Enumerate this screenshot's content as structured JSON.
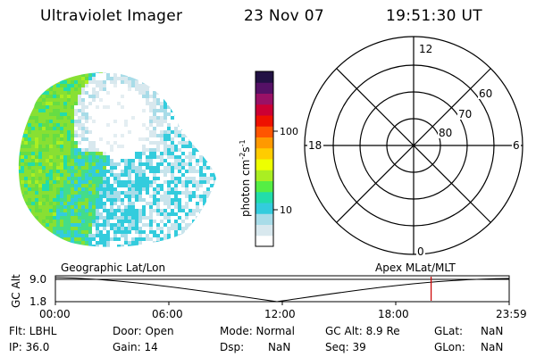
{
  "header": {
    "instrument": "Ultraviolet Imager",
    "date": "23 Nov 07",
    "time": "19:51:30 UT"
  },
  "colorbar": {
    "label": "photon cm",
    "label_exp1": "-2",
    "label_mid": "s",
    "label_exp2": "-1",
    "ticks": [
      "100",
      "10"
    ],
    "colors": [
      "#ffffff",
      "#d8e8ee",
      "#a8dce8",
      "#33ccdd",
      "#22ddaa",
      "#55ee44",
      "#aaee22",
      "#eeff00",
      "#ffcc00",
      "#ff9900",
      "#ff5500",
      "#ee1100",
      "#cc0033",
      "#991166",
      "#551166",
      "#221144"
    ]
  },
  "polar_plot": {
    "mlt_labels": {
      "top": "12",
      "bottom": "0",
      "left": "18",
      "right": "6"
    },
    "lat_labels": [
      "60",
      "70",
      "80"
    ]
  },
  "timeline": {
    "left_label": "Geographic Lat/Lon",
    "right_label": "Apex MLat/MLT",
    "axis_label": "GC Alt",
    "y_ticks": [
      "9.0",
      "1.8"
    ],
    "x_ticks": [
      "00:00",
      "06:00",
      "12:00",
      "18:00",
      "23:59"
    ],
    "marker_time": "19:51:30",
    "marker_color": "#cc0000"
  },
  "info": {
    "flt": "Flt: LBHL",
    "ip": "IP: 36.0",
    "door": "Door: Open",
    "gain": "Gain: 14",
    "mode": "Mode: Normal",
    "dsp": "Dsp:",
    "dsp_value": "NaN",
    "gc_alt": "GC Alt: 8.9 Re",
    "seq": "Seq: 39",
    "glat": "GLat:",
    "glat_value": "NaN",
    "glon": "GLon:",
    "glon_value": "NaN"
  }
}
